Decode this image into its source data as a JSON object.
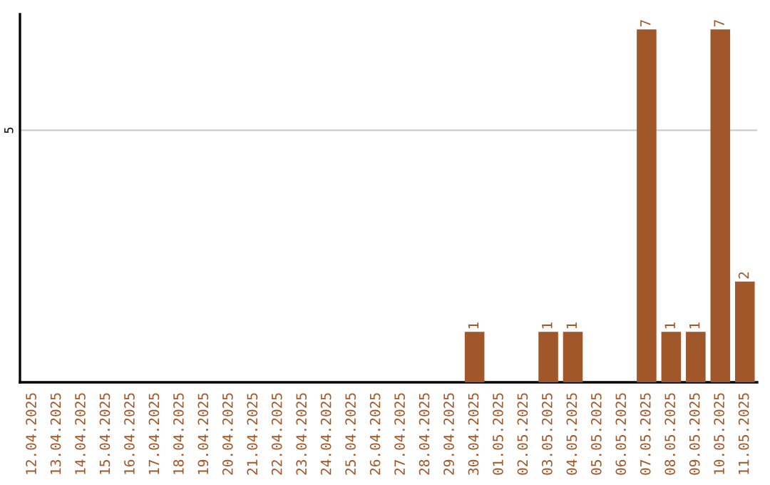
{
  "chart_data": {
    "type": "bar",
    "categories": [
      "12.04.2025",
      "13.04.2025",
      "14.04.2025",
      "15.04.2025",
      "16.04.2025",
      "17.04.2025",
      "18.04.2025",
      "19.04.2025",
      "20.04.2025",
      "21.04.2025",
      "22.04.2025",
      "23.04.2025",
      "24.04.2025",
      "25.04.2025",
      "26.04.2025",
      "27.04.2025",
      "28.04.2025",
      "29.04.2025",
      "30.04.2025",
      "01.05.2025",
      "02.05.2025",
      "03.05.2025",
      "04.05.2025",
      "05.05.2025",
      "06.05.2025",
      "07.05.2025",
      "08.05.2025",
      "09.05.2025",
      "10.05.2025",
      "11.05.2025"
    ],
    "values": [
      null,
      null,
      null,
      null,
      null,
      null,
      null,
      null,
      null,
      null,
      null,
      null,
      null,
      null,
      null,
      null,
      null,
      null,
      1,
      null,
      null,
      1,
      1,
      null,
      null,
      7,
      1,
      1,
      7,
      2
    ],
    "data_labels": true,
    "ylim": [
      0,
      7.3
    ],
    "color": "#a0572a",
    "ref_lines": [
      {
        "axis": "y",
        "value": 5,
        "label": "5",
        "color": "#cccccc"
      }
    ]
  }
}
